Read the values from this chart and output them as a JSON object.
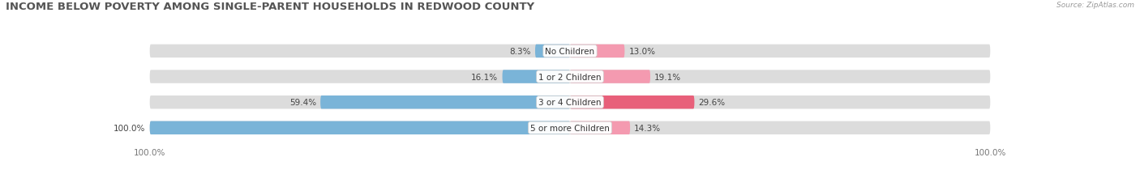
{
  "title": "INCOME BELOW POVERTY AMONG SINGLE-PARENT HOUSEHOLDS IN REDWOOD COUNTY",
  "source": "Source: ZipAtlas.com",
  "categories": [
    "No Children",
    "1 or 2 Children",
    "3 or 4 Children",
    "5 or more Children"
  ],
  "single_father": [
    8.3,
    16.1,
    59.4,
    100.0
  ],
  "single_mother": [
    13.0,
    19.1,
    29.6,
    14.3
  ],
  "father_color": "#7ab4d8",
  "mother_color": "#f49ab0",
  "mother_color_dark": "#e8607a",
  "bar_bg_color": "#dcdcdc",
  "max_val": 100.0,
  "axis_left_label": "100.0%",
  "axis_right_label": "100.0%",
  "title_fontsize": 9.5,
  "source_fontsize": 6.5,
  "label_fontsize": 7.5,
  "value_fontsize": 7.5
}
